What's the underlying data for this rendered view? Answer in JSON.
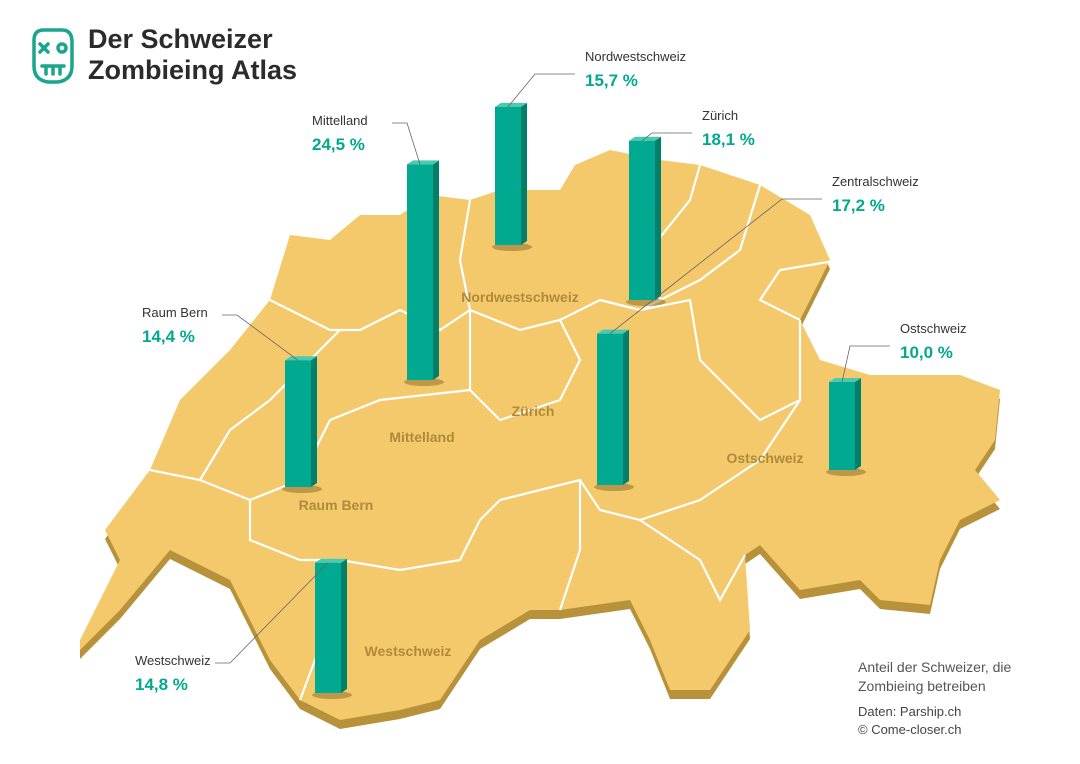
{
  "chart_data": {
    "type": "bar",
    "title": "Der Schweizer Zombieing Atlas",
    "note": "Anteil der Schweizer, die Zombieing betreiben",
    "source": "Daten: Parship.ch",
    "credit": "© Come-closer.ch",
    "categories": [
      "Mittelland",
      "Nordwestschweiz",
      "Zürich",
      "Zentralschweiz",
      "Ostschweiz",
      "Raum Bern",
      "Westschweiz"
    ],
    "values": [
      24.5,
      15.7,
      18.1,
      17.2,
      10.0,
      14.4,
      14.8
    ],
    "value_labels": [
      "24,5 %",
      "15,7 %",
      "18,1 %",
      "17,2 %",
      "10,0 %",
      "14,4 %",
      "14,8 %"
    ],
    "color": "#00a98f"
  }
}
